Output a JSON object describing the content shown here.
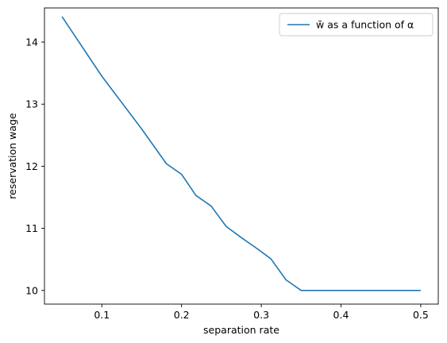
{
  "chart_data": {
    "type": "line",
    "title": "",
    "xlabel": "separation rate",
    "ylabel": "reservation wage",
    "xlim": [
      0.028,
      0.522
    ],
    "ylim": [
      9.78,
      14.55
    ],
    "xticks": [
      0.1,
      0.2,
      0.3,
      0.4,
      0.5
    ],
    "xtick_labels": [
      "0.1",
      "0.2",
      "0.3",
      "0.4",
      "0.5"
    ],
    "yticks": [
      10,
      11,
      12,
      13,
      14
    ],
    "ytick_labels": [
      "10",
      "11",
      "12",
      "13",
      "14"
    ],
    "grid": false,
    "legend_position": "top-right",
    "series": [
      {
        "name": "w̄ as a function of α",
        "color": "#1f77b4",
        "x": [
          0.05,
          0.1,
          0.15,
          0.181,
          0.2,
          0.218,
          0.237,
          0.256,
          0.275,
          0.294,
          0.312,
          0.331,
          0.35,
          0.4,
          0.45,
          0.5
        ],
        "y": [
          14.41,
          13.45,
          12.6,
          12.04,
          11.87,
          11.53,
          11.36,
          11.03,
          10.85,
          10.68,
          10.51,
          10.17,
          10.0,
          10.0,
          10.0,
          10.0
        ]
      }
    ]
  }
}
